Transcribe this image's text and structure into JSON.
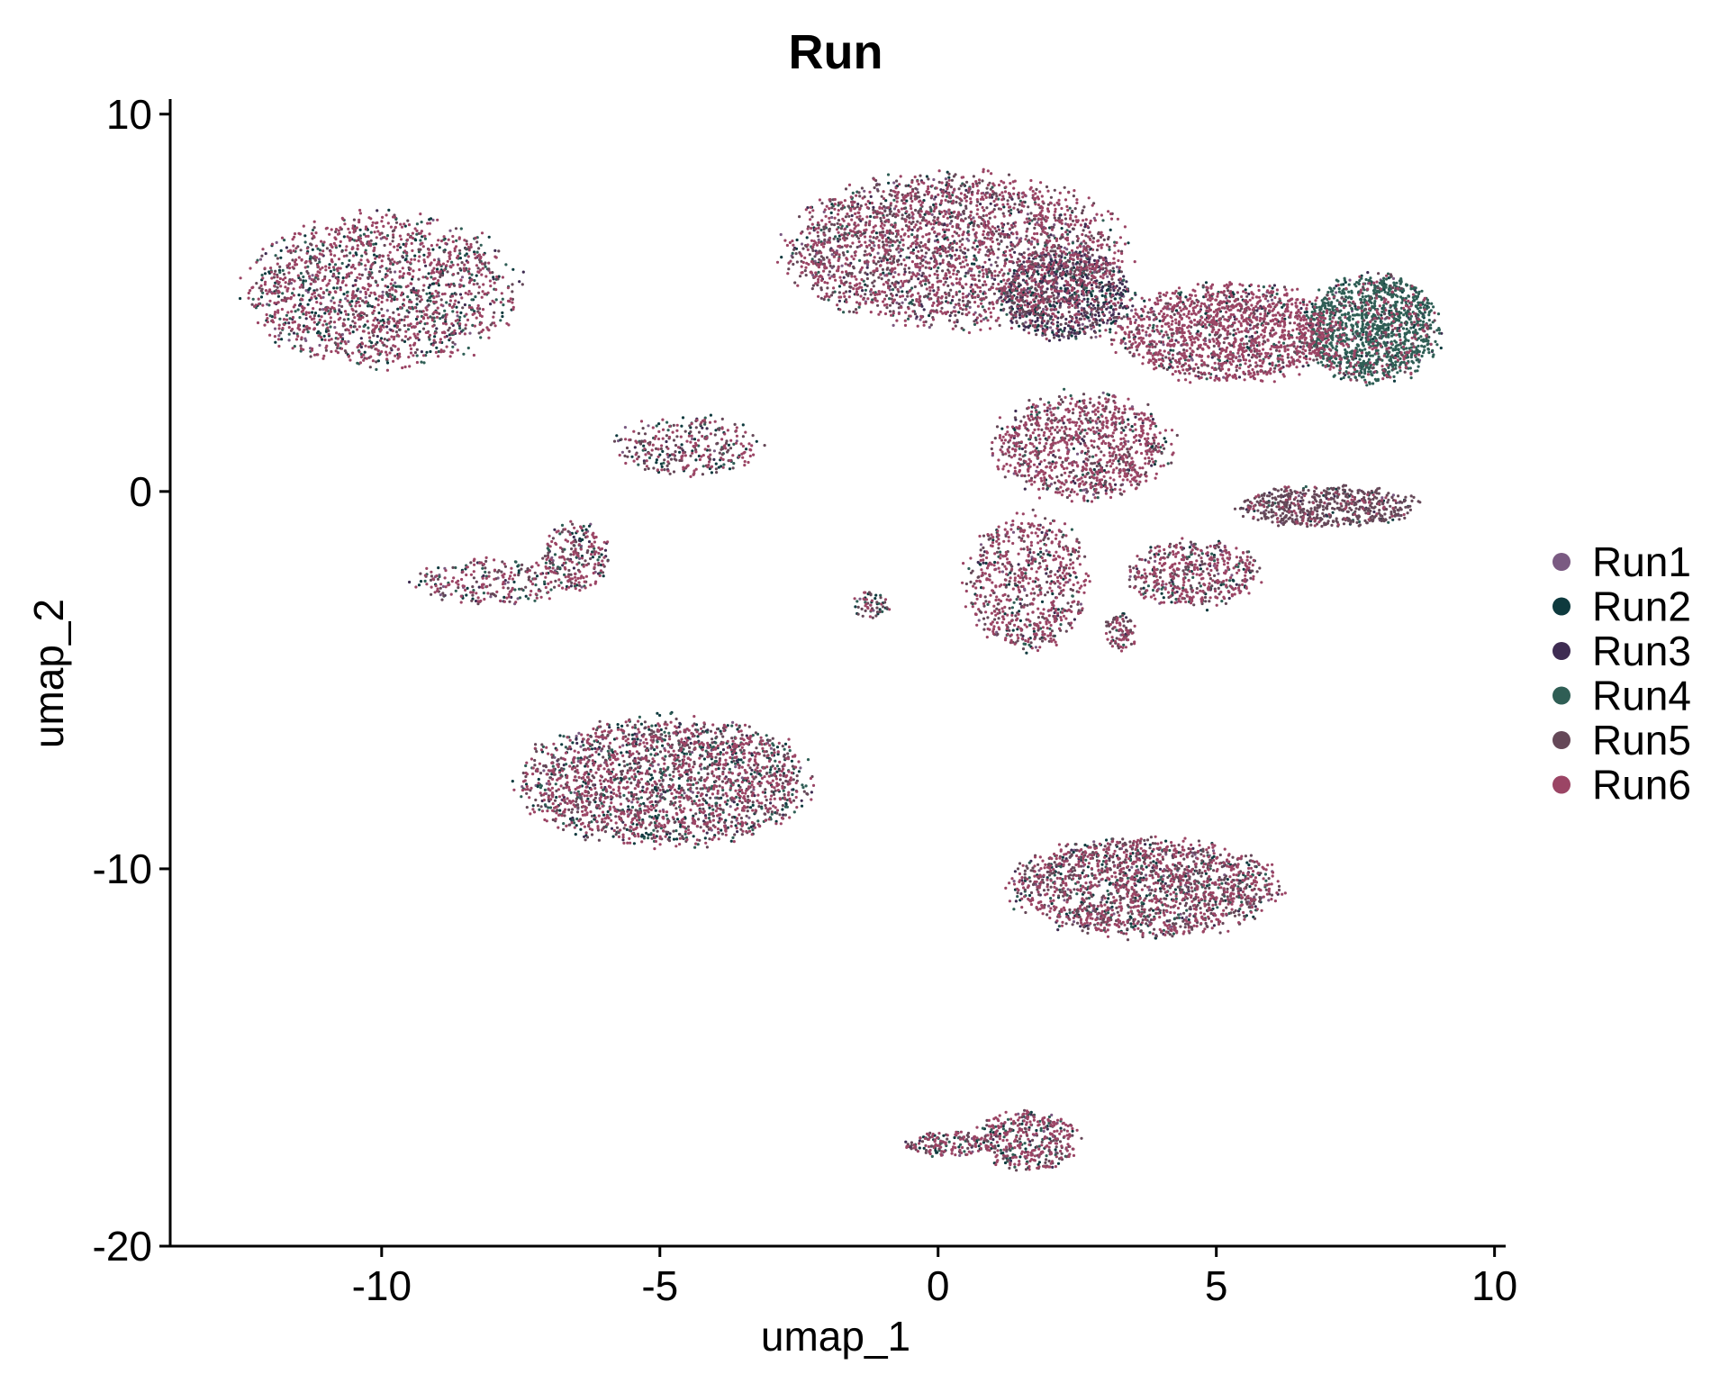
{
  "chart_data": {
    "type": "scatter",
    "title": "Run",
    "xlabel": "umap_1",
    "ylabel": "umap_2",
    "xlim": [
      -13.8,
      10.2
    ],
    "ylim": [
      -20,
      10.4
    ],
    "x_ticks": [
      -10,
      -5,
      0,
      5,
      10
    ],
    "y_ticks": [
      -20,
      -10,
      0,
      10
    ],
    "x_tick_labels": [
      "-10",
      "-5",
      "0",
      "5",
      "10"
    ],
    "y_tick_labels": [
      "-20",
      "-10",
      "0",
      "10"
    ],
    "grid": false,
    "legend_position": "right",
    "series": [
      {
        "name": "Run1",
        "color": "#7A5A82"
      },
      {
        "name": "Run2",
        "color": "#0E3A3E"
      },
      {
        "name": "Run3",
        "color": "#3E2C52"
      },
      {
        "name": "Run4",
        "color": "#2F5E55"
      },
      {
        "name": "Run5",
        "color": "#654858"
      },
      {
        "name": "Run6",
        "color": "#9B4565"
      }
    ],
    "clusters": [
      {
        "cx": -10.0,
        "cy": 5.3,
        "rx": 2.4,
        "ry": 2.0,
        "n": 1700,
        "w": [
          0.04,
          0.12,
          0.04,
          0.14,
          0.16,
          0.5
        ]
      },
      {
        "cx": -4.5,
        "cy": 1.2,
        "rx": 1.3,
        "ry": 0.8,
        "n": 320,
        "w": [
          0.04,
          0.14,
          0.04,
          0.1,
          0.28,
          0.4
        ]
      },
      {
        "cx": -8.0,
        "cy": -2.4,
        "rx": 1.4,
        "ry": 0.6,
        "n": 260,
        "w": [
          0.04,
          0.12,
          0.04,
          0.12,
          0.22,
          0.46
        ]
      },
      {
        "cx": -6.5,
        "cy": -1.7,
        "rx": 0.6,
        "ry": 0.9,
        "n": 220,
        "w": [
          0.04,
          0.1,
          0.04,
          0.1,
          0.2,
          0.52
        ]
      },
      {
        "cx": -4.9,
        "cy": -7.7,
        "rx": 2.6,
        "ry": 1.7,
        "n": 2200,
        "w": [
          0.04,
          0.12,
          0.04,
          0.12,
          0.24,
          0.44
        ]
      },
      {
        "cx": -1.2,
        "cy": -3.0,
        "rx": 0.35,
        "ry": 0.35,
        "n": 60,
        "w": [
          0.04,
          0.2,
          0.04,
          0.1,
          0.4,
          0.22
        ]
      },
      {
        "cx": 0.3,
        "cy": 6.4,
        "rx": 3.0,
        "ry": 2.0,
        "n": 2600,
        "w": [
          0.05,
          0.05,
          0.06,
          0.06,
          0.28,
          0.5
        ]
      },
      {
        "cx": 2.3,
        "cy": 5.2,
        "rx": 1.2,
        "ry": 1.2,
        "n": 900,
        "w": [
          0.1,
          0.22,
          0.3,
          0.04,
          0.16,
          0.18
        ]
      },
      {
        "cx": 5.2,
        "cy": 4.2,
        "rx": 2.0,
        "ry": 1.3,
        "n": 1500,
        "w": [
          0.03,
          0.04,
          0.03,
          0.06,
          0.14,
          0.7
        ]
      },
      {
        "cx": 7.8,
        "cy": 4.3,
        "rx": 1.2,
        "ry": 1.4,
        "n": 1400,
        "w": [
          0.02,
          0.04,
          0.02,
          0.72,
          0.06,
          0.14
        ]
      },
      {
        "cx": 2.6,
        "cy": 1.2,
        "rx": 1.6,
        "ry": 1.4,
        "n": 1000,
        "w": [
          0.03,
          0.05,
          0.03,
          0.04,
          0.22,
          0.63
        ]
      },
      {
        "cx": 1.6,
        "cy": -2.4,
        "rx": 1.1,
        "ry": 1.8,
        "n": 700,
        "w": [
          0.03,
          0.07,
          0.03,
          0.06,
          0.22,
          0.59
        ]
      },
      {
        "cx": 3.3,
        "cy": -3.7,
        "rx": 0.3,
        "ry": 0.5,
        "n": 90,
        "w": [
          0.03,
          0.05,
          0.03,
          0.05,
          0.4,
          0.44
        ]
      },
      {
        "cx": 7.0,
        "cy": -0.4,
        "rx": 1.6,
        "ry": 0.55,
        "n": 600,
        "w": [
          0.02,
          0.03,
          0.02,
          0.03,
          0.78,
          0.12
        ]
      },
      {
        "cx": 4.6,
        "cy": -2.2,
        "rx": 1.2,
        "ry": 0.9,
        "n": 500,
        "w": [
          0.03,
          0.06,
          0.03,
          0.1,
          0.24,
          0.54
        ]
      },
      {
        "cx": 3.7,
        "cy": -10.5,
        "rx": 2.4,
        "ry": 1.3,
        "n": 1800,
        "w": [
          0.04,
          0.1,
          0.04,
          0.08,
          0.3,
          0.44
        ]
      },
      {
        "cx": 1.6,
        "cy": -17.2,
        "rx": 0.9,
        "ry": 0.8,
        "n": 420,
        "w": [
          0.04,
          0.1,
          0.04,
          0.1,
          0.2,
          0.52
        ]
      },
      {
        "cx": 0.2,
        "cy": -17.3,
        "rx": 0.8,
        "ry": 0.35,
        "n": 160,
        "w": [
          0.04,
          0.12,
          0.04,
          0.1,
          0.24,
          0.46
        ]
      }
    ]
  }
}
